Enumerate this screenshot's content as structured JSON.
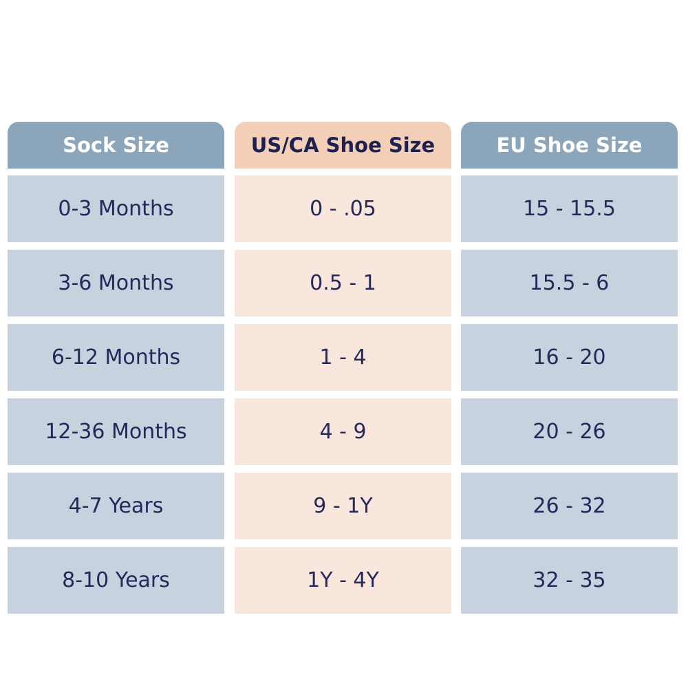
{
  "table": {
    "header": [
      "Sock Size",
      "US/CA Shoe Size",
      "EU Shoe Size"
    ],
    "rows": [
      [
        "0-3 Months",
        "0 - .05",
        "15 - 15.5"
      ],
      [
        "3-6 Months",
        "0.5 - 1",
        "15.5 - 6"
      ],
      [
        "6-12 Months",
        "1 - 4",
        "16 - 20"
      ],
      [
        "12-36 Months",
        "4 - 9",
        "20 - 26"
      ],
      [
        "4-7 Years",
        "9 - 1Y",
        "26 - 32"
      ],
      [
        "8-10 Years",
        "1Y - 4Y",
        "32 - 35"
      ]
    ]
  }
}
